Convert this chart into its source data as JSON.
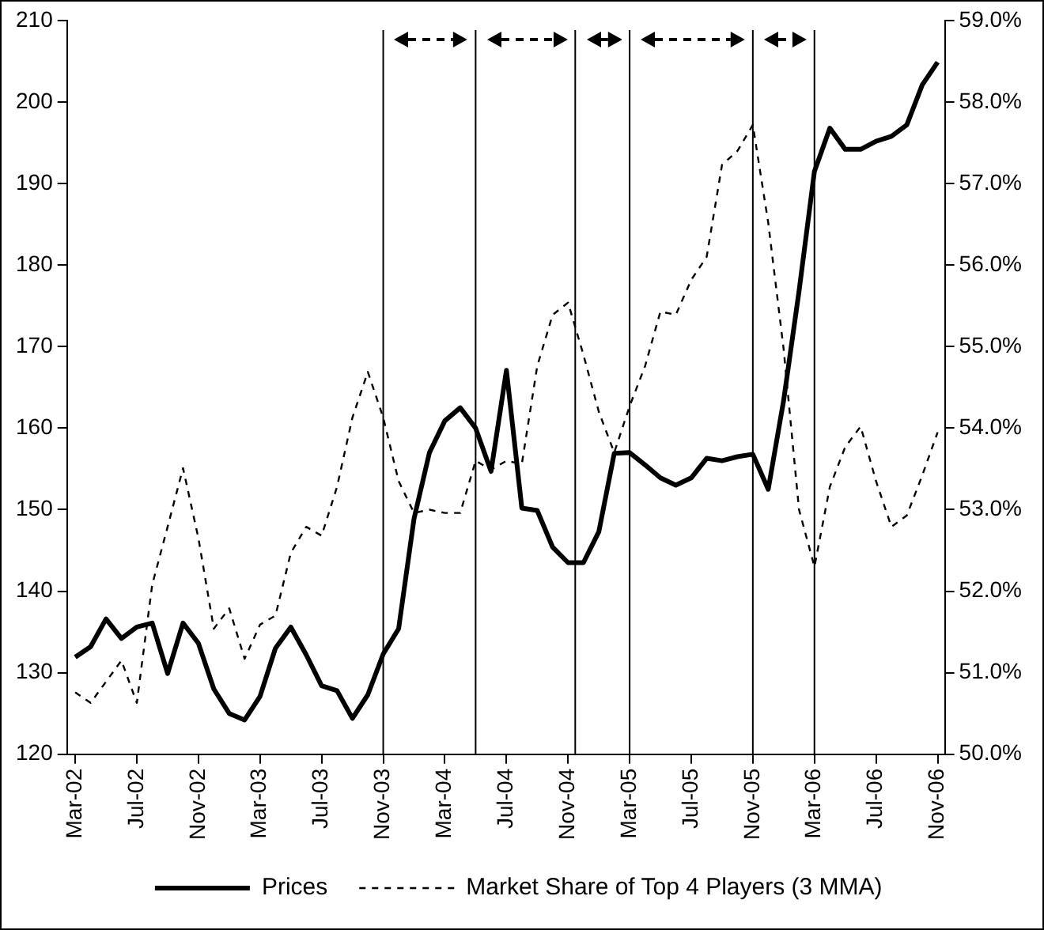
{
  "chart_data": {
    "type": "line",
    "x": [
      "2002-03",
      "2002-04",
      "2002-05",
      "2002-06",
      "2002-07",
      "2002-08",
      "2002-09",
      "2002-10",
      "2002-11",
      "2002-12",
      "2003-01",
      "2003-02",
      "2003-03",
      "2003-04",
      "2003-05",
      "2003-06",
      "2003-07",
      "2003-08",
      "2003-09",
      "2003-10",
      "2003-11",
      "2003-12",
      "2004-01",
      "2004-02",
      "2004-03",
      "2004-04",
      "2004-05",
      "2004-06",
      "2004-07",
      "2004-08",
      "2004-09",
      "2004-10",
      "2004-11",
      "2004-12",
      "2005-01",
      "2005-02",
      "2005-03",
      "2005-04",
      "2005-05",
      "2005-06",
      "2005-07",
      "2005-08",
      "2005-09",
      "2005-10",
      "2005-11",
      "2005-12",
      "2006-01",
      "2006-02",
      "2006-03",
      "2006-04",
      "2006-05",
      "2006-06",
      "2006-07",
      "2006-08",
      "2006-09",
      "2006-10",
      "2006-11"
    ],
    "series": [
      {
        "name": "Prices",
        "color": "#000000",
        "line_style": "solid",
        "values": [
          131.9,
          133.2,
          136.6,
          134.2,
          135.6,
          136.1,
          129.9,
          136.1,
          133.6,
          128.0,
          125.0,
          124.2,
          127.1,
          133.0,
          135.6,
          132.2,
          128.4,
          127.8,
          124.4,
          127.3,
          132.3,
          135.4,
          148.9,
          157.0,
          160.9,
          162.5,
          160.0,
          154.7,
          167.1,
          150.2,
          149.9,
          145.4,
          143.5,
          143.5,
          147.3,
          156.9,
          157.0,
          155.5,
          153.9,
          153.0,
          153.9,
          156.3,
          156.0,
          156.5,
          156.8,
          152.5,
          163.4,
          176.8,
          191.5,
          196.8,
          194.2,
          194.2,
          195.2,
          195.8,
          197.2,
          202.1,
          204.9
        ]
      },
      {
        "name": "Market Share of Top 4 Players (3 MMA)",
        "color": "#000000",
        "line_style": "dashed",
        "axis": "y2",
        "values": [
          50.76,
          50.63,
          50.89,
          51.15,
          50.63,
          52.08,
          52.79,
          53.51,
          52.65,
          51.54,
          51.79,
          51.17,
          51.59,
          51.7,
          52.47,
          52.79,
          52.68,
          53.28,
          54.13,
          54.69,
          54.13,
          53.35,
          52.96,
          53.0,
          52.96,
          52.96,
          53.6,
          53.49,
          53.6,
          53.56,
          54.76,
          55.39,
          55.54,
          54.9,
          54.2,
          53.7,
          54.27,
          54.76,
          55.43,
          55.39,
          55.82,
          56.1,
          57.23,
          57.4,
          57.72,
          56.52,
          54.97,
          53.0,
          52.3,
          53.28,
          53.77,
          54.02,
          53.35,
          52.79,
          52.93,
          53.42,
          53.95
        ]
      }
    ],
    "xlim": [
      "2002-02-15",
      "2006-11-15"
    ],
    "xticks": [
      {
        "value": "2002-03",
        "label": "Mar-02"
      },
      {
        "value": "2002-07",
        "label": "Jul-02"
      },
      {
        "value": "2002-11",
        "label": "Nov-02"
      },
      {
        "value": "2003-03",
        "label": "Mar-03"
      },
      {
        "value": "2003-07",
        "label": "Jul-03"
      },
      {
        "value": "2003-11",
        "label": "Nov-03"
      },
      {
        "value": "2004-03",
        "label": "Mar-04"
      },
      {
        "value": "2004-07",
        "label": "Jul-04"
      },
      {
        "value": "2004-11",
        "label": "Nov-04"
      },
      {
        "value": "2005-03",
        "label": "Mar-05"
      },
      {
        "value": "2005-07",
        "label": "Jul-05"
      },
      {
        "value": "2005-11",
        "label": "Nov-05"
      },
      {
        "value": "2006-03",
        "label": "Mar-06"
      },
      {
        "value": "2006-07",
        "label": "Jul-06"
      },
      {
        "value": "2006-11",
        "label": "Nov-06"
      }
    ],
    "ylim": [
      120,
      210
    ],
    "yticks": [
      120,
      130,
      140,
      150,
      160,
      170,
      180,
      190,
      200,
      210
    ],
    "y2lim": [
      50,
      59
    ],
    "y2ticks": [
      {
        "value": 50,
        "label": "50.0%"
      },
      {
        "value": 51,
        "label": "51.0%"
      },
      {
        "value": 52,
        "label": "52.0%"
      },
      {
        "value": 53,
        "label": "53.0%"
      },
      {
        "value": 54,
        "label": "54.0%"
      },
      {
        "value": 55,
        "label": "55.0%"
      },
      {
        "value": 56,
        "label": "56.0%"
      },
      {
        "value": 57,
        "label": "57.0%"
      },
      {
        "value": 58,
        "label": "58.0%"
      },
      {
        "value": 59,
        "label": "59.0%"
      }
    ],
    "ref_lines": [
      {
        "axis": "x",
        "value": "2003-11",
        "color": "#000000"
      },
      {
        "axis": "x",
        "value": "2004-05",
        "color": "#000000"
      },
      {
        "axis": "x",
        "value": "2004-11-15",
        "color": "#000000"
      },
      {
        "axis": "x",
        "value": "2005-03",
        "color": "#000000"
      },
      {
        "axis": "x",
        "value": "2005-11",
        "color": "#000000"
      },
      {
        "axis": "x",
        "value": "2006-03",
        "color": "#000000"
      }
    ],
    "legend": "bottom",
    "marker": "none"
  }
}
